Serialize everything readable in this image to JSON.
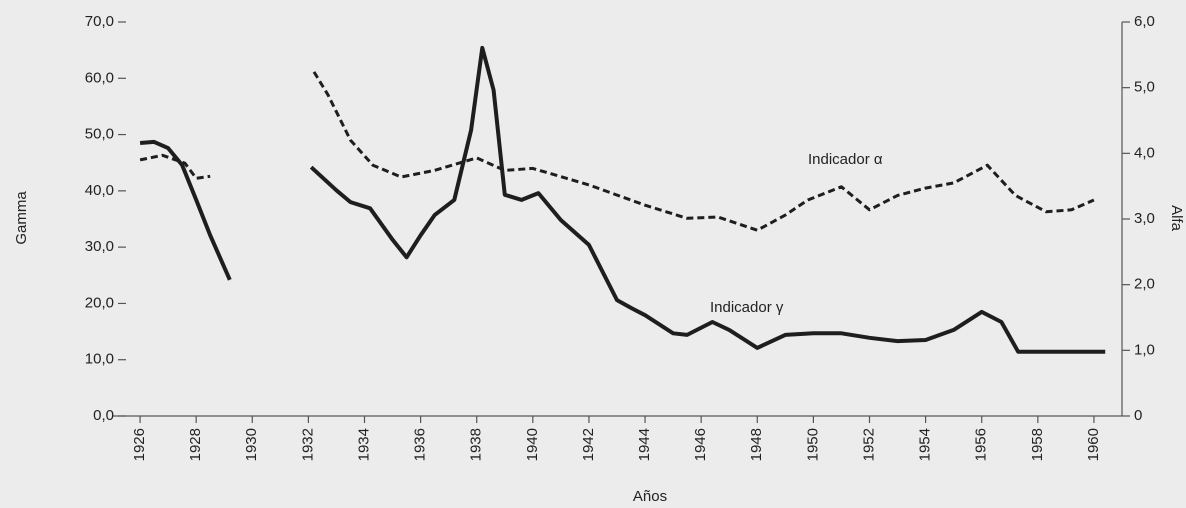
{
  "chart_data": {
    "type": "line",
    "xlabel": "Años",
    "ylabel": "Gamma",
    "y2label": "Alfa",
    "xlim": [
      1925,
      1961
    ],
    "xticks": [
      1926,
      1928,
      1930,
      1932,
      1934,
      1936,
      1938,
      1940,
      1942,
      1944,
      1946,
      1948,
      1950,
      1952,
      1954,
      1956,
      1958,
      1960
    ],
    "ylim": [
      0,
      70
    ],
    "yticks": [
      {
        "value": 0,
        "label": "0,0"
      },
      {
        "value": 10,
        "label": "10,0"
      },
      {
        "value": 20,
        "label": "20,0"
      },
      {
        "value": 30,
        "label": "30,0"
      },
      {
        "value": 40,
        "label": "40,0"
      },
      {
        "value": 50,
        "label": "50,0"
      },
      {
        "value": 60,
        "label": "60,0"
      },
      {
        "value": 70,
        "label": "70,0"
      }
    ],
    "y2lim": [
      0,
      6
    ],
    "y2ticks": [
      0,
      {
        "value": 1,
        "label": "1,0"
      },
      {
        "value": 2,
        "label": "2,0"
      },
      {
        "value": 3,
        "label": "3,0"
      },
      {
        "value": 4,
        "label": "4,0"
      },
      {
        "value": 5,
        "label": "5,0"
      },
      {
        "value": 6,
        "label": "6,0"
      }
    ],
    "series": [
      {
        "name": "Indicador γ",
        "color": "#1e1e1e",
        "dashed": false,
        "x": [
          1926,
          1926.5,
          1927,
          1927.5,
          1928,
          1928.5,
          1929.2,
          1930.5,
          1932.1,
          1933,
          1933.5,
          1934.2,
          1935,
          1935.5,
          1936,
          1936.5,
          1937.2,
          1937.8,
          1938.2,
          1938.6,
          1939,
          1939.6,
          1940.2,
          1941,
          1942,
          1943,
          1943.5,
          1944,
          1945,
          1945.5,
          1946.4,
          1947,
          1948,
          1949,
          1950,
          1951,
          1952,
          1953,
          1954,
          1955,
          1956,
          1956.7,
          1957.3,
          1958,
          1960.4
        ],
        "values": [
          48.5,
          48.7,
          47.6,
          44.6,
          38.4,
          32.1,
          24.2,
          null,
          44.2,
          40.1,
          38.0,
          36.9,
          31.3,
          28.2,
          32.1,
          35.7,
          38.4,
          50.8,
          65.4,
          57.9,
          39.3,
          38.4,
          39.6,
          34.8,
          30.4,
          20.6,
          19.2,
          17.9,
          14.7,
          14.4,
          16.7,
          15.3,
          12.1,
          14.4,
          14.7,
          14.7,
          13.9,
          13.3,
          13.5,
          15.3,
          18.5,
          16.7,
          11.4,
          11.4,
          11.4
        ]
      },
      {
        "name": "Indicador α",
        "color": "#1e1e1e",
        "dashed": true,
        "axis": "y2",
        "x": [
          1926,
          1926.8,
          1927.6,
          1928.0,
          1928.5,
          1930.5,
          1932.2,
          1932.7,
          1933.5,
          1934.3,
          1935.3,
          1936.5,
          1938,
          1939,
          1940,
          1942,
          1944,
          1945.5,
          1946.6,
          1948,
          1949,
          1949.8,
          1951,
          1952,
          1953,
          1954,
          1955,
          1956.2,
          1957.2,
          1958.3,
          1959.2,
          1960
        ],
        "values": [
          3.9,
          3.97,
          3.85,
          3.62,
          3.65,
          null,
          5.24,
          4.89,
          4.2,
          3.82,
          3.64,
          3.74,
          3.93,
          3.74,
          3.77,
          3.52,
          3.21,
          3.01,
          3.03,
          2.83,
          3.06,
          3.29,
          3.49,
          3.14,
          3.36,
          3.47,
          3.55,
          3.82,
          3.36,
          3.11,
          3.14,
          3.29
        ]
      }
    ]
  }
}
